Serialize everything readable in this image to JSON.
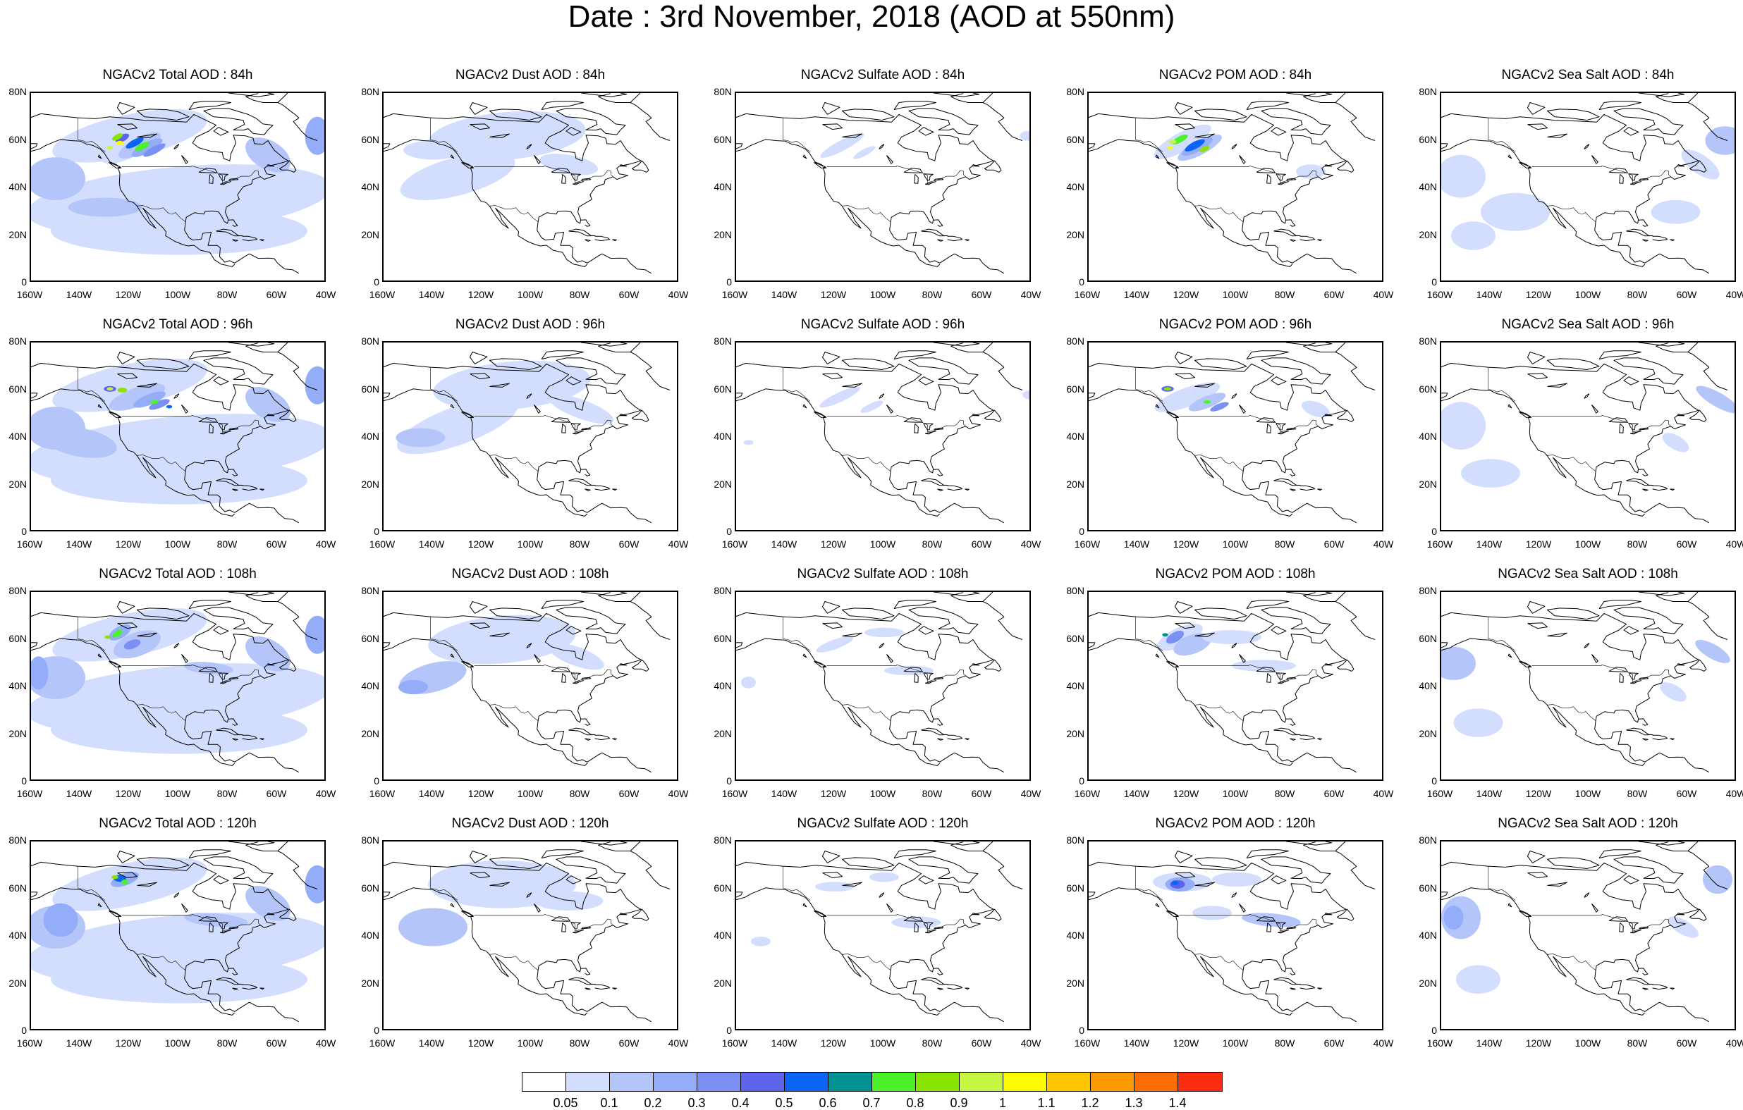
{
  "title": "Date : 3rd November, 2018 (AOD at 550nm)",
  "rows": [
    {
      "panels": [
        {
          "title": "NGACv2 Total AOD : 84h",
          "variable": "total",
          "hour": 84
        },
        {
          "title": "NGACv2 Dust AOD : 84h",
          "variable": "dust",
          "hour": 84
        },
        {
          "title": "NGACv2 Sulfate AOD : 84h",
          "variable": "sulfate",
          "hour": 84
        },
        {
          "title": "NGACv2 POM AOD : 84h",
          "variable": "pom",
          "hour": 84
        },
        {
          "title": "NGACv2 Sea Salt AOD : 84h",
          "variable": "seasalt",
          "hour": 84
        }
      ]
    },
    {
      "panels": [
        {
          "title": "NGACv2 Total AOD : 96h",
          "variable": "total",
          "hour": 96
        },
        {
          "title": "NGACv2 Dust AOD : 96h",
          "variable": "dust",
          "hour": 96
        },
        {
          "title": "NGACv2 Sulfate AOD : 96h",
          "variable": "sulfate",
          "hour": 96
        },
        {
          "title": "NGACv2 POM AOD : 96h",
          "variable": "pom",
          "hour": 96
        },
        {
          "title": "NGACv2 Sea Salt AOD : 96h",
          "variable": "seasalt",
          "hour": 96
        }
      ]
    },
    {
      "panels": [
        {
          "title": "NGACv2 Total AOD : 108h",
          "variable": "total",
          "hour": 108
        },
        {
          "title": "NGACv2 Dust AOD : 108h",
          "variable": "dust",
          "hour": 108
        },
        {
          "title": "NGACv2 Sulfate AOD : 108h",
          "variable": "sulfate",
          "hour": 108
        },
        {
          "title": "NGACv2 POM AOD : 108h",
          "variable": "pom",
          "hour": 108
        },
        {
          "title": "NGACv2 Sea Salt AOD : 108h",
          "variable": "seasalt",
          "hour": 108
        }
      ]
    },
    {
      "panels": [
        {
          "title": "NGACv2 Total AOD : 120h",
          "variable": "total",
          "hour": 120
        },
        {
          "title": "NGACv2 Dust AOD : 120h",
          "variable": "dust",
          "hour": 120
        },
        {
          "title": "NGACv2 Sulfate AOD : 120h",
          "variable": "sulfate",
          "hour": 120
        },
        {
          "title": "NGACv2 POM AOD : 120h",
          "variable": "pom",
          "hour": 120
        },
        {
          "title": "NGACv2 Sea Salt  AOD : 120h",
          "variable": "seasalt",
          "hour": 120
        }
      ]
    }
  ],
  "lat_labels": [
    "80N",
    "60N",
    "40N",
    "20N",
    "0"
  ],
  "lon_labels": [
    "160W",
    "140W",
    "120W",
    "100W",
    "80W",
    "60W",
    "40W"
  ],
  "colorbar": {
    "labels": [
      "0.05",
      "0.1",
      "0.2",
      "0.3",
      "0.4",
      "0.5",
      "0.6",
      "0.7",
      "0.8",
      "0.9",
      "1",
      "1.1",
      "1.2",
      "1.3",
      "1.4"
    ],
    "colors": [
      "#ffffff",
      "#d3deff",
      "#b4c5fa",
      "#93adf8",
      "#7b90f3",
      "#5d63ea",
      "#0b64f4",
      "#009292",
      "#4bf22a",
      "#8be400",
      "#c7f543",
      "#fdfb01",
      "#fdc502",
      "#fe9a01",
      "#fe6d01",
      "#fb2d11"
    ]
  }
}
